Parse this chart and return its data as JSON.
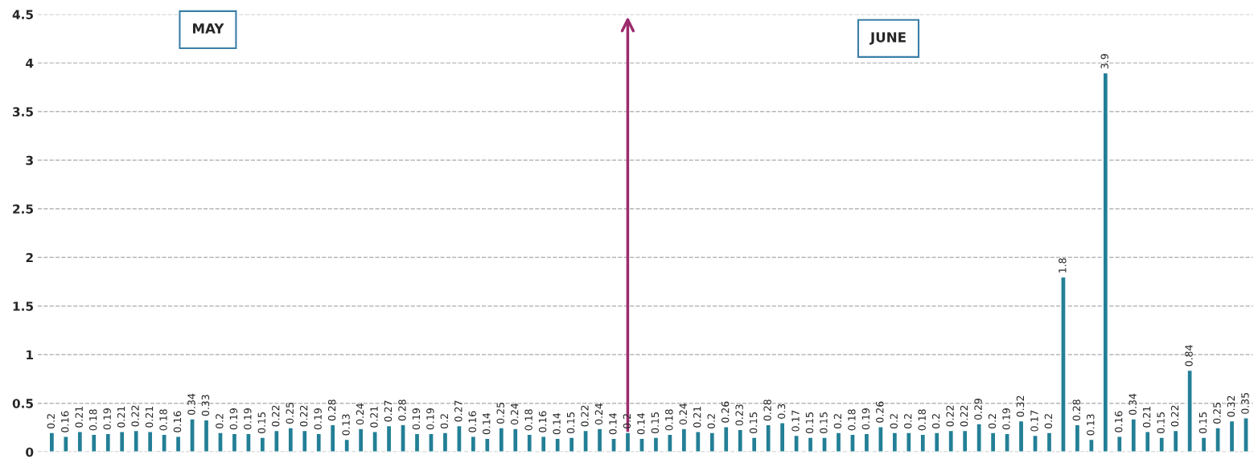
{
  "chart_data": {
    "type": "bar",
    "categories": [
      null,
      null,
      null,
      null,
      null,
      null,
      null,
      null,
      null,
      null,
      null,
      null,
      null,
      null,
      null,
      null,
      null,
      null,
      null,
      null,
      null,
      null,
      null,
      null,
      null,
      null,
      null,
      null,
      null,
      null,
      null,
      null,
      null,
      null,
      null,
      null,
      null,
      null,
      null,
      null,
      null,
      null,
      null,
      null,
      null,
      null,
      null,
      null,
      null,
      null,
      null,
      null,
      null,
      null,
      null,
      null,
      null,
      null,
      null,
      null,
      null,
      null,
      null,
      null,
      null,
      null,
      null,
      null,
      null,
      null,
      null,
      null,
      null,
      null,
      null,
      null,
      null,
      null,
      null,
      null,
      null,
      null,
      null,
      null,
      null,
      null
    ],
    "values": [
      0.2,
      0.16,
      0.21,
      0.18,
      0.19,
      0.21,
      0.22,
      0.21,
      0.18,
      0.16,
      0.34,
      0.33,
      0.2,
      0.19,
      0.19,
      0.15,
      0.22,
      0.25,
      0.22,
      0.19,
      0.28,
      0.13,
      0.24,
      0.21,
      0.27,
      0.28,
      0.19,
      0.19,
      0.2,
      0.27,
      0.16,
      0.14,
      0.25,
      0.24,
      0.18,
      0.16,
      0.14,
      0.15,
      0.22,
      0.24,
      0.14,
      0.2,
      0.14,
      0.15,
      0.18,
      0.24,
      0.21,
      0.2,
      0.26,
      0.23,
      0.15,
      0.28,
      0.3,
      0.17,
      0.15,
      0.15,
      0.2,
      0.18,
      0.19,
      0.26,
      0.2,
      0.2,
      0.18,
      0.2,
      0.22,
      0.22,
      0.29,
      0.2,
      0.19,
      0.32,
      0.17,
      0.2,
      1.8,
      0.28,
      0.13,
      3.9,
      0.16,
      0.34,
      0.21,
      0.15,
      0.22,
      0.84,
      0.15,
      0.25,
      0.32,
      0.35
    ],
    "color": "#237f96",
    "data_labels": true,
    "ylim": [
      0,
      4.5
    ],
    "yticks": [
      0,
      0.5,
      1,
      1.5,
      2,
      2.5,
      3,
      3.5,
      4,
      4.5
    ],
    "grid": "y",
    "tick_labels": "y",
    "annotations": [
      "MAY",
      "JUNE"
    ]
  }
}
